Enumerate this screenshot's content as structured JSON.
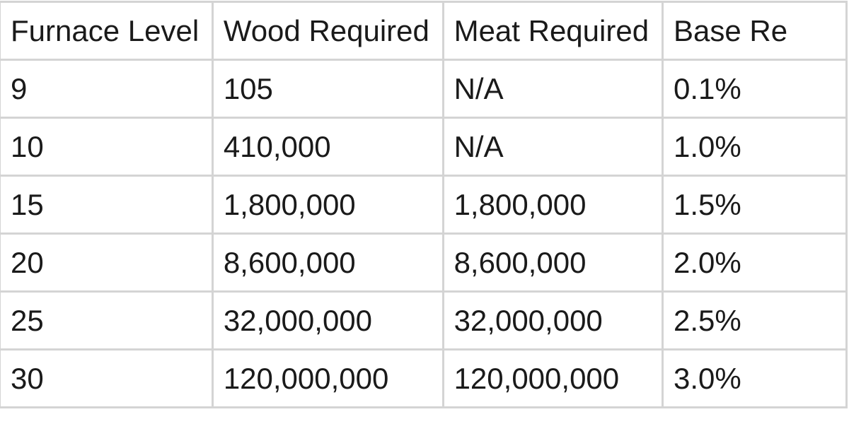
{
  "table": {
    "headers": [
      "Furnace Level",
      "Wood Required",
      "Meat Required",
      "Base Re"
    ],
    "rows": [
      [
        "9",
        "105",
        "N/A",
        "0.1%"
      ],
      [
        "10",
        "410,000",
        "N/A",
        "1.0%"
      ],
      [
        "15",
        "1,800,000",
        "1,800,000",
        "1.5%"
      ],
      [
        "20",
        "8,600,000",
        "8,600,000",
        "2.0%"
      ],
      [
        "25",
        "32,000,000",
        "32,000,000",
        "2.5%"
      ],
      [
        "30",
        "120,000,000",
        "120,000,000",
        "3.0%"
      ]
    ]
  }
}
